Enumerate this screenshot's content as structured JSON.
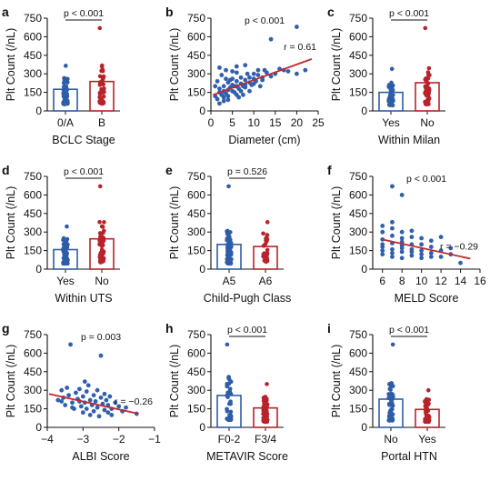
{
  "colors": {
    "blue": "#2E5DA8",
    "red": "#B8232B",
    "dot_blue": "#3060AD",
    "dot_red": "#B8232B",
    "reg_line": "#C0282E"
  },
  "chart_data": [
    {
      "panel": "a",
      "type": "bar",
      "categories": [
        "0/A",
        "B"
      ],
      "values": [
        175,
        238
      ],
      "point_counts": [
        60,
        45
      ],
      "point_ranges": [
        [
          55,
          365
        ],
        [
          60,
          670
        ]
      ],
      "colors": [
        "blue",
        "red"
      ],
      "xlabel": "BCLC Stage",
      "ylabel": "Plt Count (/nL)",
      "ylim": [
        0,
        750
      ],
      "yticks": [
        "0",
        "150",
        "300",
        "450",
        "600",
        "750"
      ],
      "pvalue": "p < 0.001"
    },
    {
      "panel": "b",
      "type": "scatter",
      "xlabel": "Diameter (cm)",
      "ylabel": "Plt Count (/nL)",
      "xlim": [
        0,
        25
      ],
      "ylim": [
        0,
        750
      ],
      "xticks": [
        "0",
        "5",
        "10",
        "15",
        "20",
        "25"
      ],
      "yticks": [
        "0",
        "150",
        "300",
        "450",
        "600",
        "750"
      ],
      "pvalue": "p < 0.001",
      "r_label": "r = 0.61",
      "regression": {
        "x": [
          0.5,
          23.5
        ],
        "y": [
          130,
          420
        ]
      },
      "points": [
        [
          1,
          120
        ],
        [
          1.5,
          95
        ],
        [
          2,
          150
        ],
        [
          2,
          180
        ],
        [
          2.5,
          130
        ],
        [
          3,
          200
        ],
        [
          3,
          160
        ],
        [
          3,
          110
        ],
        [
          3.5,
          140
        ],
        [
          4,
          170
        ],
        [
          4,
          230
        ],
        [
          4,
          120
        ],
        [
          4.5,
          190
        ],
        [
          5,
          210
        ],
        [
          5,
          160
        ],
        [
          5,
          260
        ],
        [
          5.5,
          150
        ],
        [
          6,
          200
        ],
        [
          6,
          240
        ],
        [
          6,
          130
        ],
        [
          6.5,
          180
        ],
        [
          7,
          220
        ],
        [
          7,
          270
        ],
        [
          7,
          160
        ],
        [
          7.5,
          200
        ],
        [
          8,
          250
        ],
        [
          8,
          190
        ],
        [
          8.5,
          300
        ],
        [
          9,
          230
        ],
        [
          9,
          270
        ],
        [
          9.5,
          210
        ],
        [
          10,
          260
        ],
        [
          10,
          300
        ],
        [
          10.5,
          240
        ],
        [
          11,
          290
        ],
        [
          11,
          330
        ],
        [
          12,
          270
        ],
        [
          12,
          250
        ],
        [
          13,
          310
        ],
        [
          14,
          280
        ],
        [
          15,
          300
        ],
        [
          16,
          340
        ],
        [
          17,
          330
        ],
        [
          18,
          320
        ],
        [
          20,
          300
        ],
        [
          20,
          680
        ],
        [
          22,
          330
        ],
        [
          14,
          580
        ],
        [
          1.5,
          240
        ],
        [
          2.5,
          290
        ],
        [
          3.5,
          260
        ],
        [
          5,
          320
        ],
        [
          6,
          310
        ],
        [
          8,
          370
        ],
        [
          3,
          80
        ],
        [
          4,
          90
        ],
        [
          2,
          60
        ],
        [
          6.5,
          110
        ],
        [
          7.5,
          130
        ],
        [
          9,
          160
        ],
        [
          1,
          200
        ],
        [
          5.5,
          200
        ],
        [
          4.5,
          250
        ],
        [
          3.5,
          330
        ],
        [
          8,
          210
        ],
        [
          10,
          220
        ],
        [
          2,
          350
        ],
        [
          11.5,
          200
        ],
        [
          12.5,
          330
        ],
        [
          6,
          360
        ]
      ]
    },
    {
      "panel": "c",
      "type": "bar",
      "categories": [
        "Yes",
        "No"
      ],
      "values": [
        150,
        228
      ],
      "point_counts": [
        50,
        55
      ],
      "point_ranges": [
        [
          45,
          340
        ],
        [
          55,
          670
        ]
      ],
      "colors": [
        "blue",
        "red"
      ],
      "xlabel": "Within Milan",
      "ylabel": "Plt Count (/nL)",
      "ylim": [
        0,
        750
      ],
      "yticks": [
        "0",
        "150",
        "300",
        "450",
        "600",
        "750"
      ],
      "pvalue": "p < 0.001"
    },
    {
      "panel": "d",
      "type": "bar",
      "categories": [
        "Yes",
        "No"
      ],
      "values": [
        158,
        245
      ],
      "point_counts": [
        55,
        50
      ],
      "point_ranges": [
        [
          45,
          345
        ],
        [
          55,
          670
        ]
      ],
      "colors": [
        "blue",
        "red"
      ],
      "xlabel": "Within UTS",
      "ylabel": "Plt Count (/nL)",
      "ylim": [
        0,
        750
      ],
      "yticks": [
        "0",
        "150",
        "300",
        "450",
        "600",
        "750"
      ],
      "pvalue": "p < 0.001"
    },
    {
      "panel": "e",
      "type": "bar",
      "categories": [
        "A5",
        "A6"
      ],
      "values": [
        200,
        183
      ],
      "point_counts": [
        75,
        25
      ],
      "point_ranges": [
        [
          45,
          670
        ],
        [
          60,
          380
        ]
      ],
      "colors": [
        "blue",
        "red"
      ],
      "xlabel": "Child-Pugh Class",
      "ylabel": "Plt Count (/nL)",
      "ylim": [
        0,
        750
      ],
      "yticks": [
        "0",
        "150",
        "300",
        "450",
        "600",
        "750"
      ],
      "pvalue": "p = 0.526"
    },
    {
      "panel": "f",
      "type": "scatter",
      "xlabel": "MELD Score",
      "ylabel": "Plt Count (/nL)",
      "xlim": [
        5,
        16
      ],
      "ylim": [
        0,
        750
      ],
      "xticks": [
        "6",
        "8",
        "10",
        "12",
        "14",
        "16"
      ],
      "yticks": [
        "0",
        "150",
        "300",
        "450",
        "600",
        "750"
      ],
      "pvalue": "p < 0.001",
      "r_label": "r = −0.29",
      "regression": {
        "x": [
          6,
          15
        ],
        "y": [
          240,
          85
        ]
      },
      "points": [
        [
          6,
          120
        ],
        [
          6,
          180
        ],
        [
          6,
          240
        ],
        [
          6,
          300
        ],
        [
          6,
          350
        ],
        [
          6,
          200
        ],
        [
          6,
          150
        ],
        [
          7,
          100
        ],
        [
          7,
          160
        ],
        [
          7,
          210
        ],
        [
          7,
          270
        ],
        [
          7,
          330
        ],
        [
          7,
          670
        ],
        [
          7,
          380
        ],
        [
          7,
          130
        ],
        [
          8,
          90
        ],
        [
          8,
          140
        ],
        [
          8,
          190
        ],
        [
          8,
          250
        ],
        [
          8,
          300
        ],
        [
          8,
          600
        ],
        [
          8,
          220
        ],
        [
          8,
          170
        ],
        [
          9,
          110
        ],
        [
          9,
          160
        ],
        [
          9,
          200
        ],
        [
          9,
          260
        ],
        [
          9,
          310
        ],
        [
          9,
          140
        ],
        [
          10,
          90
        ],
        [
          10,
          150
        ],
        [
          10,
          200
        ],
        [
          10,
          250
        ],
        [
          10,
          120
        ],
        [
          11,
          130
        ],
        [
          11,
          180
        ],
        [
          11,
          230
        ],
        [
          11,
          100
        ],
        [
          12,
          100
        ],
        [
          12,
          150
        ],
        [
          12,
          260
        ],
        [
          13,
          120
        ],
        [
          13,
          170
        ],
        [
          14,
          50
        ]
      ]
    },
    {
      "panel": "g",
      "type": "scatter",
      "xlabel": "ALBI Score",
      "ylabel": "Plt Count (/nL)",
      "xlim": [
        -4,
        -1
      ],
      "ylim": [
        0,
        750
      ],
      "xticks": [
        "−4",
        "−3",
        "−2",
        "−1"
      ],
      "yticks": [
        "0",
        "150",
        "300",
        "450",
        "600",
        "750"
      ],
      "pvalue": "p = 0.003",
      "r_label": "r = −0.26",
      "regression": {
        "x": [
          -3.95,
          -1.45
        ],
        "y": [
          270,
          110
        ]
      },
      "points": [
        [
          -3.7,
          220
        ],
        [
          -3.6,
          300
        ],
        [
          -3.55,
          240
        ],
        [
          -3.5,
          180
        ],
        [
          -3.45,
          320
        ],
        [
          -3.4,
          260
        ],
        [
          -3.35,
          670
        ],
        [
          -3.3,
          200
        ],
        [
          -3.25,
          150
        ],
        [
          -3.2,
          280
        ],
        [
          -3.15,
          230
        ],
        [
          -3.1,
          310
        ],
        [
          -3.05,
          170
        ],
        [
          -3.0,
          250
        ],
        [
          -3.0,
          120
        ],
        [
          -2.95,
          200
        ],
        [
          -2.9,
          290
        ],
        [
          -2.9,
          150
        ],
        [
          -2.85,
          340
        ],
        [
          -2.8,
          220
        ],
        [
          -2.8,
          100
        ],
        [
          -2.75,
          180
        ],
        [
          -2.7,
          260
        ],
        [
          -2.7,
          130
        ],
        [
          -2.65,
          210
        ],
        [
          -2.6,
          300
        ],
        [
          -2.6,
          160
        ],
        [
          -2.55,
          90
        ],
        [
          -2.5,
          240
        ],
        [
          -2.5,
          580
        ],
        [
          -2.45,
          190
        ],
        [
          -2.4,
          140
        ],
        [
          -2.4,
          270
        ],
        [
          -2.35,
          220
        ],
        [
          -2.3,
          120
        ],
        [
          -2.3,
          180
        ],
        [
          -2.25,
          250
        ],
        [
          -2.2,
          150
        ],
        [
          -2.2,
          100
        ],
        [
          -2.1,
          200
        ],
        [
          -2.0,
          170
        ],
        [
          -1.9,
          130
        ],
        [
          -1.8,
          160
        ],
        [
          -1.5,
          110
        ],
        [
          -3.6,
          210
        ],
        [
          -3.3,
          160
        ],
        [
          -3.1,
          210
        ],
        [
          -2.95,
          370
        ]
      ]
    },
    {
      "panel": "h",
      "type": "bar",
      "categories": [
        "F0-2",
        "F3/4"
      ],
      "values": [
        258,
        157
      ],
      "point_counts": [
        35,
        65
      ],
      "point_ranges": [
        [
          60,
          670
        ],
        [
          45,
          350
        ]
      ],
      "colors": [
        "blue",
        "red"
      ],
      "xlabel": "METAVIR Score",
      "ylabel": "Plt Count (/nL)",
      "ylim": [
        0,
        750
      ],
      "yticks": [
        "0",
        "150",
        "300",
        "450",
        "600",
        "750"
      ],
      "pvalue": "p < 0.001"
    },
    {
      "panel": "i",
      "type": "bar",
      "categories": [
        "No",
        "Yes"
      ],
      "values": [
        228,
        145
      ],
      "point_counts": [
        55,
        35
      ],
      "point_ranges": [
        [
          55,
          670
        ],
        [
          45,
          300
        ]
      ],
      "colors": [
        "blue",
        "red"
      ],
      "xlabel": "Portal HTN",
      "ylabel": "Plt Count (/nL)",
      "ylim": [
        0,
        750
      ],
      "yticks": [
        "0",
        "150",
        "300",
        "450",
        "600",
        "750"
      ],
      "pvalue": "p < 0.001"
    }
  ]
}
